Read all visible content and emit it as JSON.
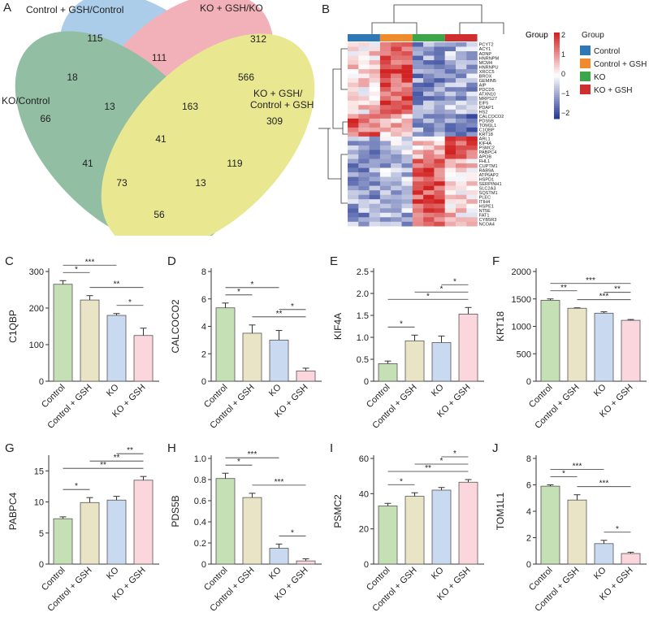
{
  "chart_data": [
    {
      "panel": "A",
      "type": "venn",
      "sets": [
        {
          "name": "Control + GSH/Control",
          "color": "#6aa5d8"
        },
        {
          "name": "KO + GSH/KO",
          "color": "#e8727f"
        },
        {
          "name": "KO/Control",
          "color": "#3a8a5a"
        },
        {
          "name": "KO + GSH/",
          "name2": "Control + GSH",
          "color": "#d8d436"
        }
      ],
      "counts": [
        "115",
        "312",
        "18",
        "111",
        "566",
        "66",
        "13",
        "163",
        "309",
        "41",
        "41",
        "73",
        "13",
        "119",
        "56"
      ]
    },
    {
      "panel": "B",
      "type": "heatmap",
      "legend_title": "Group",
      "groups": [
        "Control",
        "Control + GSH",
        "KO",
        "KO + GSH"
      ],
      "group_colors": [
        "#2e78b5",
        "#ef8a2d",
        "#3da64a",
        "#cf2f2f"
      ],
      "scale_ticks": [
        "2",
        "1",
        "0",
        "−1",
        "−2"
      ],
      "genes": [
        "PCYT2",
        "ACY1",
        "ADNP",
        "HNRNPM",
        "MCM4",
        "HNRNPU",
        "XRCC5",
        "BROX",
        "GEMIN5",
        "AIP",
        "PDCD5",
        "ATXN10",
        "MRPS27",
        "EIF5",
        "PDAP1",
        "HS2",
        "CALCOCO2",
        "PDS5B",
        "TOM1L1",
        "C1QBP",
        "KRT18",
        "ARL1",
        "KIF4A",
        "PSMC2",
        "PABPC4",
        "APOB",
        "FHL1",
        "CUPTM1",
        "RAB9A",
        "ATP6AP2",
        "HSPD1",
        "SERPINH1",
        "SLC2A3",
        "SQSTM1",
        "PLEC",
        "ITIH4",
        "HSPE1",
        "NT5E",
        "FAT1",
        "CYB5R3",
        "NCOA4"
      ],
      "samples_per_group": 3
    },
    {
      "panel": "C",
      "type": "bar",
      "ylabel": "C1QBP",
      "categories": [
        "Control",
        "Control + GSH",
        "KO",
        "KO + GSH"
      ],
      "values": [
        265,
        222,
        180,
        125
      ],
      "errors": [
        10,
        12,
        5,
        20
      ],
      "ylim": [
        0,
        300
      ],
      "yticks": [
        "0",
        "100",
        "200",
        "300"
      ],
      "significance": [
        {
          "from": 0,
          "to": 1,
          "label": "*"
        },
        {
          "from": 0,
          "to": 2,
          "label": "***"
        },
        {
          "from": 1,
          "to": 3,
          "label": "**"
        },
        {
          "from": 2,
          "to": 3,
          "label": "*"
        }
      ]
    },
    {
      "panel": "D",
      "type": "bar",
      "ylabel": "CALCOCO2",
      "categories": [
        "Control",
        "Control + GSH",
        "KO",
        "KO + GSH"
      ],
      "values": [
        5.35,
        3.5,
        3.0,
        0.75
      ],
      "errors": [
        0.35,
        0.6,
        0.7,
        0.2
      ],
      "ylim": [
        0,
        8
      ],
      "yticks": [
        "0",
        "2",
        "4",
        "6",
        "8"
      ],
      "significance": [
        {
          "from": 0,
          "to": 1,
          "label": "*"
        },
        {
          "from": 0,
          "to": 2,
          "label": "*"
        },
        {
          "from": 1,
          "to": 3,
          "label": "**"
        },
        {
          "from": 2,
          "to": 3,
          "label": "*"
        }
      ]
    },
    {
      "panel": "E",
      "type": "bar",
      "ylabel": "KIF4A",
      "categories": [
        "Control",
        "Control + GSH",
        "KO",
        "KO + GSH"
      ],
      "values": [
        0.4,
        0.92,
        0.88,
        1.53
      ],
      "errors": [
        0.06,
        0.13,
        0.15,
        0.15
      ],
      "ylim": [
        0,
        2.5
      ],
      "yticks": [
        "0",
        "0.5",
        "1.0",
        "1.5",
        "2.0",
        "2.5"
      ],
      "significance": [
        {
          "from": 0,
          "to": 1,
          "label": "*"
        },
        {
          "from": 0,
          "to": 3,
          "label": "*"
        },
        {
          "from": 1,
          "to": 3,
          "label": "*"
        },
        {
          "from": 2,
          "to": 3,
          "label": "*"
        }
      ]
    },
    {
      "panel": "F",
      "type": "bar",
      "ylabel": "KRT18",
      "categories": [
        "Control",
        "Control + GSH",
        "KO",
        "KO + GSH"
      ],
      "values": [
        1475,
        1330,
        1240,
        1110
      ],
      "errors": [
        25,
        8,
        25,
        15
      ],
      "ylim": [
        0,
        2000
      ],
      "yticks": [
        "0",
        "500",
        "1000",
        "1500",
        "2000"
      ],
      "significance": [
        {
          "from": 0,
          "to": 1,
          "label": "**"
        },
        {
          "from": 0,
          "to": 3,
          "label": "***"
        },
        {
          "from": 1,
          "to": 3,
          "label": "***"
        },
        {
          "from": 2,
          "to": 3,
          "label": "**"
        }
      ]
    },
    {
      "panel": "G",
      "type": "bar",
      "ylabel": "PABPC4",
      "categories": [
        "Control",
        "Control + GSH",
        "KO",
        "KO + GSH"
      ],
      "values": [
        7.3,
        9.9,
        10.3,
        13.5
      ],
      "errors": [
        0.3,
        0.8,
        0.6,
        0.6
      ],
      "ylim": [
        0,
        17
      ],
      "yticks": [
        "0",
        "5",
        "10",
        "15"
      ],
      "significance": [
        {
          "from": 0,
          "to": 1,
          "label": "*"
        },
        {
          "from": 0,
          "to": 3,
          "label": "**"
        },
        {
          "from": 1,
          "to": 3,
          "label": "**"
        },
        {
          "from": 2,
          "to": 3,
          "label": "**"
        }
      ]
    },
    {
      "panel": "H",
      "type": "bar",
      "ylabel": "PDS5B",
      "categories": [
        "Control",
        "Control + GSH",
        "KO",
        "KO + GSH"
      ],
      "values": [
        0.81,
        0.63,
        0.15,
        0.03
      ],
      "errors": [
        0.05,
        0.04,
        0.04,
        0.02
      ],
      "ylim": [
        0,
        1.0
      ],
      "yticks": [
        "0",
        "0.2",
        "0.4",
        "0.6",
        "0.8",
        "1.0"
      ],
      "significance": [
        {
          "from": 0,
          "to": 1,
          "label": "*"
        },
        {
          "from": 0,
          "to": 2,
          "label": "***"
        },
        {
          "from": 1,
          "to": 3,
          "label": "***"
        },
        {
          "from": 2,
          "to": 3,
          "label": "*"
        }
      ]
    },
    {
      "panel": "I",
      "type": "bar",
      "ylabel": "PSMC2",
      "categories": [
        "Control",
        "Control + GSH",
        "KO",
        "KO + GSH"
      ],
      "values": [
        33,
        38.5,
        42,
        46.5
      ],
      "errors": [
        1.5,
        2,
        1.5,
        1.5
      ],
      "ylim": [
        0,
        60
      ],
      "yticks": [
        "0",
        "20",
        "40",
        "60"
      ],
      "significance": [
        {
          "from": 0,
          "to": 1,
          "label": "*"
        },
        {
          "from": 0,
          "to": 3,
          "label": "**"
        },
        {
          "from": 1,
          "to": 3,
          "label": "*"
        },
        {
          "from": 2,
          "to": 3,
          "label": "*"
        }
      ]
    },
    {
      "panel": "J",
      "type": "bar",
      "ylabel": "TOM1L1",
      "categories": [
        "Control",
        "Control + GSH",
        "KO",
        "KO + GSH"
      ],
      "values": [
        5.9,
        4.85,
        1.55,
        0.8
      ],
      "errors": [
        0.1,
        0.4,
        0.25,
        0.1
      ],
      "ylim": [
        0,
        8
      ],
      "yticks": [
        "0",
        "2",
        "4",
        "6",
        "8"
      ],
      "significance": [
        {
          "from": 0,
          "to": 1,
          "label": "*"
        },
        {
          "from": 0,
          "to": 2,
          "label": "***"
        },
        {
          "from": 1,
          "to": 3,
          "label": "***"
        },
        {
          "from": 2,
          "to": 3,
          "label": "*"
        }
      ]
    }
  ],
  "bar_colors": [
    "#c5e0b4",
    "#e8e4c5",
    "#c9d9f0",
    "#fbd6dc"
  ]
}
